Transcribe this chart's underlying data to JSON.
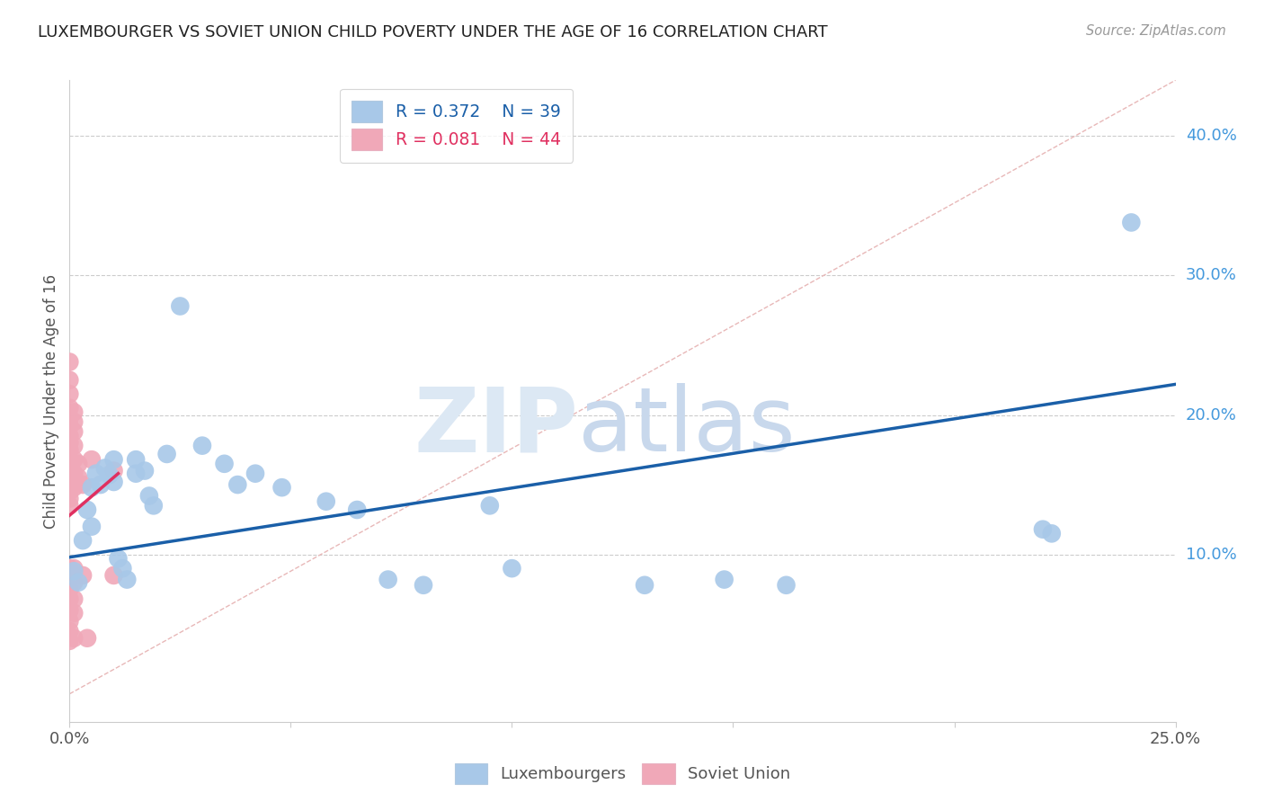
{
  "title": "LUXEMBOURGER VS SOVIET UNION CHILD POVERTY UNDER THE AGE OF 16 CORRELATION CHART",
  "source": "Source: ZipAtlas.com",
  "ylabel": "Child Poverty Under the Age of 16",
  "ylabel_right_ticks": [
    "40.0%",
    "30.0%",
    "20.0%",
    "10.0%"
  ],
  "ylabel_right_values": [
    0.4,
    0.3,
    0.2,
    0.1
  ],
  "xlim": [
    0.0,
    0.25
  ],
  "ylim": [
    -0.02,
    0.44
  ],
  "legend_blue_r": "R = 0.372",
  "legend_blue_n": "N = 39",
  "legend_pink_r": "R = 0.081",
  "legend_pink_n": "N = 44",
  "blue_scatter": [
    [
      0.001,
      0.088
    ],
    [
      0.002,
      0.08
    ],
    [
      0.003,
      0.11
    ],
    [
      0.004,
      0.132
    ],
    [
      0.005,
      0.148
    ],
    [
      0.005,
      0.12
    ],
    [
      0.006,
      0.158
    ],
    [
      0.007,
      0.15
    ],
    [
      0.008,
      0.162
    ],
    [
      0.009,
      0.157
    ],
    [
      0.01,
      0.168
    ],
    [
      0.01,
      0.152
    ],
    [
      0.011,
      0.097
    ],
    [
      0.012,
      0.09
    ],
    [
      0.013,
      0.082
    ],
    [
      0.015,
      0.158
    ],
    [
      0.015,
      0.168
    ],
    [
      0.017,
      0.16
    ],
    [
      0.018,
      0.142
    ],
    [
      0.019,
      0.135
    ],
    [
      0.022,
      0.172
    ],
    [
      0.025,
      0.278
    ],
    [
      0.03,
      0.178
    ],
    [
      0.035,
      0.165
    ],
    [
      0.038,
      0.15
    ],
    [
      0.042,
      0.158
    ],
    [
      0.048,
      0.148
    ],
    [
      0.058,
      0.138
    ],
    [
      0.065,
      0.132
    ],
    [
      0.072,
      0.082
    ],
    [
      0.08,
      0.078
    ],
    [
      0.095,
      0.135
    ],
    [
      0.1,
      0.09
    ],
    [
      0.13,
      0.078
    ],
    [
      0.148,
      0.082
    ],
    [
      0.162,
      0.078
    ],
    [
      0.22,
      0.118
    ],
    [
      0.24,
      0.338
    ],
    [
      0.222,
      0.115
    ]
  ],
  "pink_scatter": [
    [
      0.0,
      0.238
    ],
    [
      0.0,
      0.225
    ],
    [
      0.0,
      0.215
    ],
    [
      0.0,
      0.205
    ],
    [
      0.0,
      0.198
    ],
    [
      0.0,
      0.192
    ],
    [
      0.0,
      0.185
    ],
    [
      0.0,
      0.18
    ],
    [
      0.0,
      0.175
    ],
    [
      0.0,
      0.168
    ],
    [
      0.0,
      0.162
    ],
    [
      0.0,
      0.155
    ],
    [
      0.0,
      0.15
    ],
    [
      0.0,
      0.145
    ],
    [
      0.0,
      0.14
    ],
    [
      0.0,
      0.135
    ],
    [
      0.0,
      0.09
    ],
    [
      0.0,
      0.082
    ],
    [
      0.0,
      0.075
    ],
    [
      0.0,
      0.068
    ],
    [
      0.0,
      0.06
    ],
    [
      0.0,
      0.052
    ],
    [
      0.0,
      0.045
    ],
    [
      0.0,
      0.038
    ],
    [
      0.001,
      0.202
    ],
    [
      0.001,
      0.195
    ],
    [
      0.001,
      0.188
    ],
    [
      0.001,
      0.178
    ],
    [
      0.001,
      0.168
    ],
    [
      0.001,
      0.158
    ],
    [
      0.001,
      0.148
    ],
    [
      0.001,
      0.09
    ],
    [
      0.001,
      0.08
    ],
    [
      0.001,
      0.068
    ],
    [
      0.001,
      0.058
    ],
    [
      0.001,
      0.04
    ],
    [
      0.002,
      0.165
    ],
    [
      0.002,
      0.155
    ],
    [
      0.003,
      0.15
    ],
    [
      0.003,
      0.085
    ],
    [
      0.004,
      0.04
    ],
    [
      0.005,
      0.168
    ],
    [
      0.01,
      0.16
    ],
    [
      0.01,
      0.085
    ]
  ],
  "blue_line_x": [
    0.0,
    0.25
  ],
  "blue_line_y": [
    0.098,
    0.222
  ],
  "pink_line_x": [
    0.0,
    0.011
  ],
  "pink_line_y": [
    0.128,
    0.158
  ],
  "diag_line_x": [
    0.0,
    0.25
  ],
  "diag_line_y": [
    0.0,
    0.44
  ],
  "scatter_color_blue": "#a8c8e8",
  "scatter_color_pink": "#f0a8b8",
  "line_color_blue": "#1a5fa8",
  "line_color_pink": "#e03060",
  "diag_color": "#e8b8b8",
  "watermark_zip_color": "#dce8f4",
  "watermark_atlas_color": "#c8d8ec",
  "background_color": "#ffffff",
  "grid_color": "#cccccc"
}
